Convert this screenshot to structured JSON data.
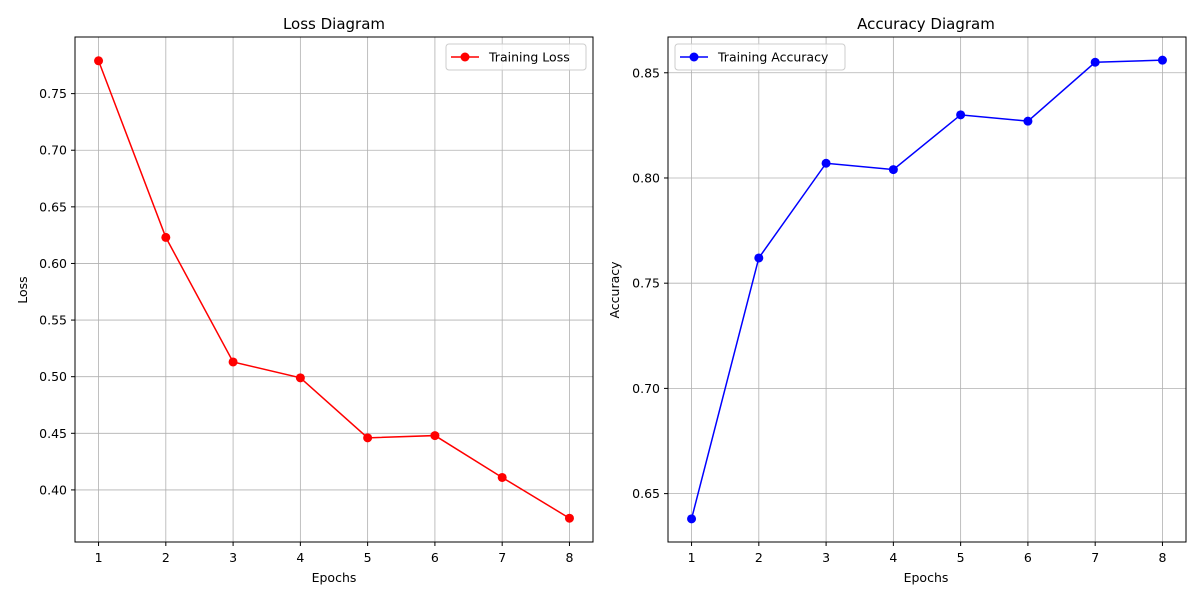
{
  "chart_data": [
    {
      "type": "line",
      "title": "Loss Diagram",
      "xlabel": "Epochs",
      "ylabel": "Loss",
      "x": [
        1,
        2,
        3,
        4,
        5,
        6,
        7,
        8
      ],
      "series": [
        {
          "name": "Training Loss",
          "color": "#ff0000",
          "marker": "circle",
          "values": [
            0.779,
            0.623,
            0.513,
            0.499,
            0.446,
            0.448,
            0.411,
            0.375
          ]
        }
      ],
      "xticks": [
        "1",
        "2",
        "3",
        "4",
        "5",
        "6",
        "7",
        "8"
      ],
      "yticks": [
        "0.40",
        "0.45",
        "0.50",
        "0.55",
        "0.60",
        "0.65",
        "0.70",
        "0.75"
      ],
      "xlim": [
        0.65,
        8.35
      ],
      "ylim": [
        0.354,
        0.8
      ],
      "grid": true,
      "legend": "upper right"
    },
    {
      "type": "line",
      "title": "Accuracy Diagram",
      "xlabel": "Epochs",
      "ylabel": "Accuracy",
      "x": [
        1,
        2,
        3,
        4,
        5,
        6,
        7,
        8
      ],
      "series": [
        {
          "name": "Training Accuracy",
          "color": "#0000ff",
          "marker": "circle",
          "values": [
            0.638,
            0.762,
            0.807,
            0.804,
            0.83,
            0.827,
            0.855,
            0.856
          ]
        }
      ],
      "xticks": [
        "1",
        "2",
        "3",
        "4",
        "5",
        "6",
        "7",
        "8"
      ],
      "yticks": [
        "0.65",
        "0.70",
        "0.75",
        "0.80",
        "0.85"
      ],
      "xlim": [
        0.65,
        8.35
      ],
      "ylim": [
        0.627,
        0.867
      ],
      "grid": true,
      "legend": "upper left"
    }
  ]
}
